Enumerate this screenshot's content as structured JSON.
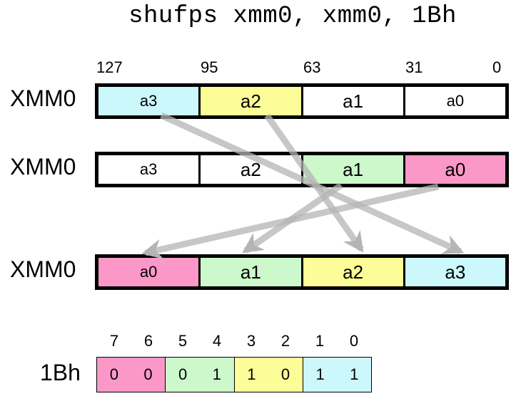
{
  "title": "shufps xmm0, xmm0, 1Bh",
  "bit_labels": [
    "127",
    "95",
    "63",
    "31",
    "0"
  ],
  "registers": [
    {
      "name": "XMM0",
      "lanes": [
        {
          "label": "a3",
          "color": "#ccf8fc"
        },
        {
          "label": "a2",
          "color": "#fcfc98"
        },
        {
          "label": "a1",
          "color": "#ffffff"
        },
        {
          "label": "a0",
          "color": "#ffffff"
        }
      ]
    },
    {
      "name": "XMM0",
      "lanes": [
        {
          "label": "a3",
          "color": "#ffffff"
        },
        {
          "label": "a2",
          "color": "#ffffff"
        },
        {
          "label": "a1",
          "color": "#ccf8cc"
        },
        {
          "label": "a0",
          "color": "#fc98c8"
        }
      ]
    },
    {
      "name": "XMM0",
      "lanes": [
        {
          "label": "a0",
          "color": "#fc98c8"
        },
        {
          "label": "a1",
          "color": "#ccf8cc"
        },
        {
          "label": "a2",
          "color": "#fcfc98"
        },
        {
          "label": "a3",
          "color": "#ccf8fc"
        }
      ]
    }
  ],
  "immediate": {
    "name": "1Bh",
    "bit_numbers": [
      "7",
      "6",
      "5",
      "4",
      "3",
      "2",
      "1",
      "0"
    ],
    "bits": [
      "0",
      "0",
      "0",
      "1",
      "1",
      "0",
      "1",
      "1"
    ],
    "group_colors": [
      "#fc98c8",
      "#ccf8cc",
      "#fcfc98",
      "#ccf8fc"
    ]
  },
  "arrow_color": "#b4b4b4"
}
